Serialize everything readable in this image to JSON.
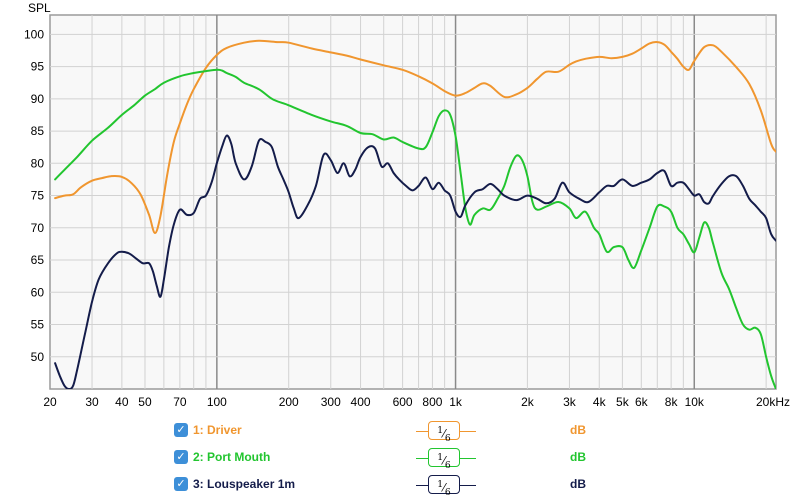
{
  "chart_data": {
    "type": "line",
    "title": "",
    "ylabel": "SPL",
    "xlabel": "",
    "x_scale": "log",
    "xlim": [
      20,
      22000
    ],
    "ylim": [
      45,
      103
    ],
    "y_ticks": [
      {
        "value": 100,
        "label": "100"
      },
      {
        "value": 95,
        "label": "95"
      },
      {
        "value": 90,
        "label": "90"
      },
      {
        "value": 85,
        "label": "85"
      },
      {
        "value": 80,
        "label": "80"
      },
      {
        "value": 75,
        "label": "75"
      },
      {
        "value": 70,
        "label": "70"
      },
      {
        "value": 65,
        "label": "65"
      },
      {
        "value": 60,
        "label": "60"
      },
      {
        "value": 55,
        "label": "55"
      },
      {
        "value": 50,
        "label": "50"
      }
    ],
    "x_ticks": [
      {
        "value": 20,
        "label": "20"
      },
      {
        "value": 30,
        "label": "30"
      },
      {
        "value": 40,
        "label": "40"
      },
      {
        "value": 50,
        "label": "50"
      },
      {
        "value": 70,
        "label": "70"
      },
      {
        "value": 100,
        "label": "100"
      },
      {
        "value": 200,
        "label": "200"
      },
      {
        "value": 300,
        "label": "300"
      },
      {
        "value": 400,
        "label": "400"
      },
      {
        "value": 600,
        "label": "600"
      },
      {
        "value": 800,
        "label": "800"
      },
      {
        "value": 1000,
        "label": "1k"
      },
      {
        "value": 2000,
        "label": "2k"
      },
      {
        "value": 3000,
        "label": "3k"
      },
      {
        "value": 4000,
        "label": "4k"
      },
      {
        "value": 5000,
        "label": "5k"
      },
      {
        "value": 6000,
        "label": "6k"
      },
      {
        "value": 8000,
        "label": "8k"
      },
      {
        "value": 10000,
        "label": "10k"
      },
      {
        "value": 20000,
        "label": "20kHz"
      }
    ],
    "grid": true,
    "legend_position": "bottom",
    "series": [
      {
        "name": "1: Driver",
        "color": "#f0962f",
        "smoothing": "1/6",
        "unit": "dB",
        "x": [
          21,
          23,
          25,
          27,
          30,
          33,
          36,
          40,
          44,
          48,
          52,
          55,
          58,
          62,
          66,
          70,
          75,
          80,
          90,
          100,
          110,
          130,
          150,
          180,
          200,
          250,
          300,
          350,
          400,
          500,
          600,
          700,
          800,
          900,
          1000,
          1100,
          1200,
          1300,
          1400,
          1600,
          1800,
          2000,
          2200,
          2400,
          2700,
          3000,
          3200,
          3500,
          4000,
          4500,
          5000,
          5500,
          6000,
          6500,
          7000,
          7500,
          8000,
          8500,
          9000,
          9500,
          10000,
          11000,
          12000,
          13000,
          15000,
          17000,
          19000,
          21000,
          22000
        ],
        "values": [
          74.6,
          75.0,
          75.2,
          76.3,
          77.3,
          77.7,
          78.0,
          77.9,
          76.9,
          75.1,
          72.0,
          69.2,
          71.8,
          78.3,
          83.3,
          86.2,
          89.2,
          91.5,
          94.8,
          96.8,
          97.9,
          98.7,
          99.0,
          98.8,
          98.7,
          97.8,
          97.2,
          96.7,
          96.1,
          95.2,
          94.5,
          93.5,
          92.4,
          91.2,
          90.5,
          90.9,
          91.7,
          92.4,
          92.0,
          90.3,
          90.7,
          91.7,
          93.1,
          94.2,
          94.2,
          95.3,
          95.8,
          96.2,
          96.5,
          96.3,
          96.5,
          97.0,
          97.8,
          98.6,
          98.8,
          98.4,
          97.3,
          96.2,
          95.0,
          94.5,
          95.9,
          98.0,
          98.3,
          97.3,
          94.9,
          92.3,
          88.2,
          83.0,
          81.8
        ]
      },
      {
        "name": "2: Port Mouth",
        "color": "#22c52f",
        "smoothing": "1/6",
        "unit": "dB",
        "x": [
          21,
          23,
          26,
          30,
          35,
          40,
          45,
          50,
          55,
          60,
          70,
          80,
          90,
          100,
          105,
          110,
          120,
          130,
          150,
          170,
          190,
          200,
          250,
          300,
          350,
          400,
          450,
          500,
          550,
          600,
          700,
          750,
          800,
          850,
          900,
          950,
          1000,
          1050,
          1100,
          1150,
          1200,
          1300,
          1400,
          1500,
          1600,
          1700,
          1800,
          1900,
          2000,
          2100,
          2200,
          2400,
          2700,
          3000,
          3200,
          3500,
          3800,
          4000,
          4300,
          4600,
          5000,
          5300,
          5600,
          6000,
          6500,
          7000,
          7500,
          8000,
          8500,
          9000,
          9500,
          10000,
          10500,
          11000,
          11500,
          12000,
          13000,
          14000,
          15000,
          16000,
          17000,
          18000,
          19000,
          20000,
          21000,
          22000
        ],
        "values": [
          77.5,
          79.0,
          81.0,
          83.5,
          85.5,
          87.5,
          89.0,
          90.5,
          91.5,
          92.5,
          93.5,
          94.0,
          94.3,
          94.5,
          94.4,
          94.0,
          93.4,
          92.5,
          91.5,
          90.0,
          89.3,
          89.0,
          87.5,
          86.5,
          85.8,
          84.7,
          84.5,
          83.7,
          84.0,
          83.3,
          82.3,
          82.5,
          84.8,
          87.3,
          88.2,
          87.5,
          84.2,
          78.5,
          73.0,
          70.5,
          72.0,
          73.0,
          72.8,
          74.5,
          76.5,
          79.5,
          81.2,
          80.5,
          78.0,
          74.0,
          72.8,
          73.3,
          74.0,
          73.0,
          71.5,
          72.5,
          70.0,
          69.0,
          66.3,
          67.0,
          67.0,
          65.0,
          63.8,
          66.5,
          70.0,
          73.3,
          73.3,
          72.5,
          70.0,
          69.0,
          67.5,
          66.2,
          68.5,
          70.8,
          70.0,
          67.5,
          63.0,
          60.5,
          57.5,
          55.0,
          54.2,
          54.5,
          53.5,
          50.0,
          47.0,
          45.0
        ]
      },
      {
        "name": "3: Louspeaker 1m",
        "color": "#141c4a",
        "smoothing": "1/6",
        "unit": "dB",
        "x": [
          21,
          22,
          23,
          24,
          25,
          26,
          28,
          30,
          32,
          35,
          38,
          40,
          43,
          46,
          49,
          52,
          54,
          56,
          58,
          60,
          63,
          66,
          70,
          75,
          80,
          85,
          90,
          95,
          100,
          105,
          110,
          115,
          120,
          130,
          140,
          150,
          160,
          170,
          180,
          190,
          200,
          210,
          220,
          240,
          260,
          280,
          300,
          320,
          340,
          360,
          380,
          400,
          430,
          460,
          490,
          520,
          550,
          580,
          620,
          660,
          700,
          750,
          800,
          850,
          900,
          950,
          1000,
          1050,
          1100,
          1200,
          1300,
          1400,
          1500,
          1600,
          1800,
          2000,
          2200,
          2400,
          2600,
          2800,
          3000,
          3300,
          3600,
          4000,
          4300,
          4600,
          5000,
          5500,
          6000,
          6500,
          7000,
          7500,
          8000,
          8500,
          9000,
          9500,
          10000,
          10500,
          11000,
          11500,
          12000,
          13000,
          14000,
          15000,
          16000,
          17000,
          18000,
          19000,
          20000,
          21000,
          22000
        ],
        "values": [
          49.0,
          47.0,
          45.5,
          45.0,
          45.5,
          48.0,
          53.5,
          58.5,
          62.0,
          64.5,
          66.0,
          66.3,
          66.0,
          65.2,
          64.5,
          64.5,
          63.2,
          61.0,
          59.3,
          62.0,
          67.0,
          70.5,
          72.8,
          72.0,
          72.3,
          74.5,
          75.0,
          77.0,
          80.0,
          82.5,
          84.3,
          83.0,
          80.0,
          77.5,
          79.5,
          83.5,
          83.3,
          82.5,
          79.5,
          77.5,
          75.5,
          73.0,
          71.5,
          73.5,
          76.5,
          81.3,
          80.5,
          78.5,
          80.0,
          78.0,
          79.0,
          81.0,
          82.5,
          82.3,
          79.5,
          80.0,
          78.5,
          77.5,
          76.5,
          75.8,
          76.5,
          77.8,
          76.0,
          77.0,
          75.8,
          75.0,
          72.5,
          71.7,
          73.5,
          75.5,
          76.0,
          76.8,
          76.0,
          75.0,
          74.3,
          75.0,
          74.5,
          73.8,
          74.5,
          77.0,
          75.5,
          74.5,
          74.0,
          75.5,
          76.5,
          76.5,
          77.5,
          76.5,
          77.0,
          77.5,
          78.5,
          78.8,
          76.5,
          77.0,
          77.0,
          76.0,
          75.0,
          75.2,
          74.0,
          73.8,
          75.0,
          76.8,
          78.0,
          78.0,
          76.5,
          74.5,
          73.5,
          72.5,
          71.5,
          69.0,
          68.0
        ]
      }
    ]
  }
}
